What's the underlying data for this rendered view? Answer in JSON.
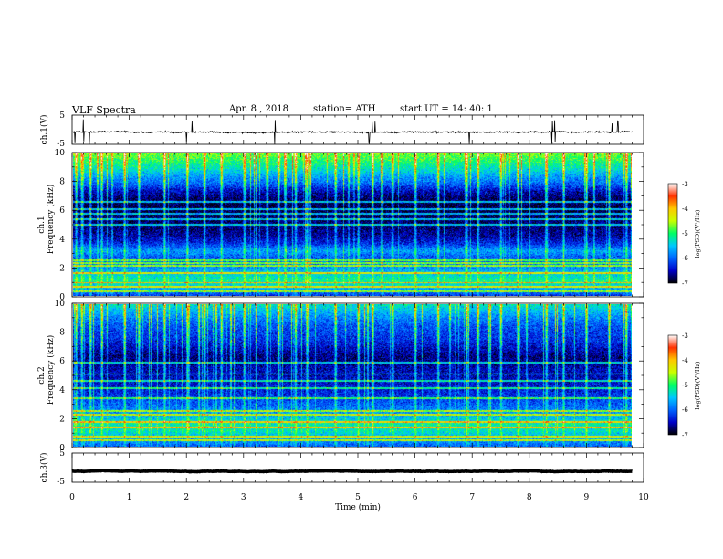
{
  "header": {
    "title": "VLF  Spectra",
    "date": "Apr. 8  , 2018",
    "station": "station= ATH",
    "start": "start  UT  =    14: 40: 1"
  },
  "chart_data": [
    {
      "type": "line",
      "title": "",
      "ylabel": "ch.1(V)",
      "ylim": [
        -5,
        5
      ],
      "yticks": [
        "5",
        "-5"
      ],
      "xlim": [
        0,
        10
      ],
      "series": [
        {
          "color": "#000000",
          "baseline": -0.8,
          "noise": 0.7,
          "spike_times": [
            0.05,
            0.2,
            0.3,
            2.0,
            2.1,
            3.55,
            5.2,
            5.25,
            5.3,
            6.95,
            8.4,
            8.45,
            9.45,
            9.55
          ]
        }
      ]
    },
    {
      "type": "heatmap",
      "title": "",
      "ylabel": "ch.1",
      "ylabel2": "Frequency  (kHz)",
      "ylim": [
        0,
        10
      ],
      "yticks": [
        "0",
        "2",
        "4",
        "6",
        "8",
        "10"
      ],
      "xlim": [
        0,
        9.8
      ],
      "colorbar": {
        "label": "log(PSD)(V²/Hz)",
        "range": [
          -7,
          -3
        ],
        "ticks": [
          "-3",
          "-4",
          "-5",
          "-6",
          "-7"
        ],
        "colors": [
          "#000000",
          "#0000c8",
          "#0064ff",
          "#00c8ff",
          "#00ff64",
          "#c8ff00",
          "#ffc800",
          "#ff3200",
          "#ffffff"
        ]
      },
      "level_profile": [
        -6.2,
        -5.6,
        -5.1,
        -5.5,
        -5.9,
        -6.1,
        -5.7,
        -6.3,
        -6.6,
        -6.7,
        -6.75,
        -6.8,
        -6.85,
        -6.75,
        -6.5,
        -6.0,
        -5.7,
        -5.3,
        -5.0,
        -4.7
      ],
      "narrowband_lines_khz": [
        0.3,
        0.6,
        0.9,
        1.6,
        2.1,
        2.3,
        2.5,
        5.0,
        5.4,
        5.8,
        6.1,
        6.6
      ],
      "impulse_times_min": [
        0.05,
        0.15,
        0.3,
        0.5,
        0.9,
        1.15,
        1.6,
        2.0,
        2.3,
        2.6,
        3.0,
        3.4,
        3.6,
        3.9,
        4.1,
        4.6,
        5.0,
        5.25,
        5.6,
        6.0,
        6.4,
        6.9,
        7.1,
        7.5,
        7.8,
        8.3,
        8.6,
        9.0,
        9.4,
        9.7
      ]
    },
    {
      "type": "heatmap",
      "title": "",
      "ylabel": "ch.2",
      "ylabel2": "Frequency  (kHz)",
      "ylim": [
        0,
        10
      ],
      "yticks": [
        "0",
        "2",
        "4",
        "6",
        "8",
        "10"
      ],
      "xlim": [
        0,
        9.8
      ],
      "colorbar": {
        "label": "log(PSD)(V²/Hz)",
        "range": [
          -7,
          -3
        ],
        "ticks": [
          "-3",
          "-4",
          "-5",
          "-6",
          "-7"
        ],
        "colors": [
          "#000000",
          "#0000c8",
          "#0064ff",
          "#00c8ff",
          "#00ff64",
          "#c8ff00",
          "#ffc800",
          "#ff3200",
          "#ffffff"
        ]
      },
      "level_profile": [
        -6.0,
        -5.7,
        -5.3,
        -5.2,
        -5.6,
        -5.9,
        -6.1,
        -6.3,
        -6.4,
        -6.5,
        -6.5,
        -6.6,
        -6.7,
        -6.5,
        -6.3,
        -6.2,
        -6.1,
        -5.9,
        -5.6,
        -5.3
      ],
      "narrowband_lines_khz": [
        0.4,
        0.7,
        1.3,
        1.7,
        2.2,
        2.5,
        3.4,
        4.1,
        4.6,
        5.1,
        5.9
      ],
      "impulse_times_min": [
        0.05,
        0.15,
        0.3,
        0.5,
        0.9,
        1.15,
        1.6,
        2.0,
        2.3,
        2.6,
        3.0,
        3.4,
        3.6,
        3.9,
        4.1,
        4.6,
        5.0,
        5.25,
        5.6,
        6.0,
        6.4,
        6.9,
        7.1,
        7.5,
        7.8,
        8.3,
        8.6,
        9.0,
        9.4,
        9.7
      ]
    },
    {
      "type": "line",
      "title": "",
      "ylabel": "ch.3(V)",
      "xlabel": "Time  (min)",
      "ylim": [
        -5,
        5
      ],
      "yticks": [
        "5",
        "-5"
      ],
      "xlim": [
        0,
        10
      ],
      "xticks": [
        "0",
        "1",
        "2",
        "3",
        "4",
        "5",
        "6",
        "7",
        "8",
        "9",
        "10"
      ],
      "series": [
        {
          "color": "#000000",
          "baseline": -1.2,
          "noise": 0.15,
          "spike_times": []
        }
      ]
    }
  ]
}
